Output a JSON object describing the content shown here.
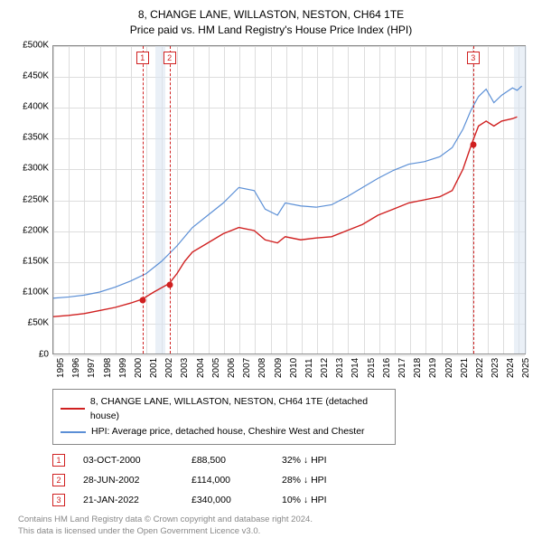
{
  "title": {
    "line1": "8, CHANGE LANE, WILLASTON, NESTON, CH64 1TE",
    "line2": "Price paid vs. HM Land Registry's House Price Index (HPI)"
  },
  "chart": {
    "type": "line",
    "background_color": "#ffffff",
    "grid_color": "#dddddd",
    "axis_color": "#888888",
    "label_fontsize": 10,
    "tick_fontsize": 10,
    "ylim": [
      0,
      500000
    ],
    "ytick_step": 50000,
    "yticks": [
      "£0",
      "£50K",
      "£100K",
      "£150K",
      "£200K",
      "£250K",
      "£300K",
      "£350K",
      "£400K",
      "£450K",
      "£500K"
    ],
    "xlim": [
      1995,
      2025.5
    ],
    "xticks": [
      "1995",
      "1996",
      "1997",
      "1998",
      "1999",
      "2000",
      "2001",
      "2002",
      "2003",
      "2004",
      "2005",
      "2006",
      "2007",
      "2008",
      "2009",
      "2010",
      "2011",
      "2012",
      "2013",
      "2014",
      "2015",
      "2016",
      "2017",
      "2018",
      "2019",
      "2020",
      "2021",
      "2022",
      "2023",
      "2024",
      "2025"
    ],
    "band_color": "#dce6f2",
    "bands": [
      {
        "from": 2001.6,
        "to": 2002.2
      },
      {
        "from": 2024.7,
        "to": 2025.5
      }
    ],
    "series": [
      {
        "name": "price_paid",
        "color": "#d02020",
        "width": 1.4,
        "points": [
          [
            1995.0,
            60000
          ],
          [
            1996.0,
            62000
          ],
          [
            1997.0,
            65000
          ],
          [
            1998.0,
            70000
          ],
          [
            1999.0,
            75000
          ],
          [
            2000.0,
            82000
          ],
          [
            2000.75,
            88500
          ],
          [
            2001.5,
            100000
          ],
          [
            2002.5,
            114000
          ],
          [
            2003.0,
            130000
          ],
          [
            2003.5,
            150000
          ],
          [
            2004.0,
            165000
          ],
          [
            2005.0,
            180000
          ],
          [
            2006.0,
            195000
          ],
          [
            2007.0,
            205000
          ],
          [
            2008.0,
            200000
          ],
          [
            2008.7,
            185000
          ],
          [
            2009.5,
            180000
          ],
          [
            2010.0,
            190000
          ],
          [
            2011.0,
            185000
          ],
          [
            2012.0,
            188000
          ],
          [
            2013.0,
            190000
          ],
          [
            2014.0,
            200000
          ],
          [
            2015.0,
            210000
          ],
          [
            2016.0,
            225000
          ],
          [
            2017.0,
            235000
          ],
          [
            2018.0,
            245000
          ],
          [
            2019.0,
            250000
          ],
          [
            2020.0,
            255000
          ],
          [
            2020.8,
            265000
          ],
          [
            2021.5,
            300000
          ],
          [
            2022.05,
            340000
          ],
          [
            2022.5,
            370000
          ],
          [
            2023.0,
            378000
          ],
          [
            2023.5,
            370000
          ],
          [
            2024.0,
            378000
          ],
          [
            2024.7,
            382000
          ],
          [
            2025.0,
            385000
          ]
        ]
      },
      {
        "name": "hpi",
        "color": "#5b8fd6",
        "width": 1.2,
        "points": [
          [
            1995.0,
            90000
          ],
          [
            1996.0,
            92000
          ],
          [
            1997.0,
            95000
          ],
          [
            1998.0,
            100000
          ],
          [
            1999.0,
            108000
          ],
          [
            2000.0,
            118000
          ],
          [
            2001.0,
            130000
          ],
          [
            2002.0,
            150000
          ],
          [
            2003.0,
            175000
          ],
          [
            2004.0,
            205000
          ],
          [
            2005.0,
            225000
          ],
          [
            2006.0,
            245000
          ],
          [
            2007.0,
            270000
          ],
          [
            2008.0,
            265000
          ],
          [
            2008.7,
            235000
          ],
          [
            2009.5,
            225000
          ],
          [
            2010.0,
            245000
          ],
          [
            2011.0,
            240000
          ],
          [
            2012.0,
            238000
          ],
          [
            2013.0,
            242000
          ],
          [
            2014.0,
            255000
          ],
          [
            2015.0,
            270000
          ],
          [
            2016.0,
            285000
          ],
          [
            2017.0,
            298000
          ],
          [
            2018.0,
            308000
          ],
          [
            2019.0,
            312000
          ],
          [
            2020.0,
            320000
          ],
          [
            2020.8,
            335000
          ],
          [
            2021.5,
            365000
          ],
          [
            2022.0,
            395000
          ],
          [
            2022.5,
            418000
          ],
          [
            2023.0,
            430000
          ],
          [
            2023.5,
            408000
          ],
          [
            2024.0,
            420000
          ],
          [
            2024.7,
            432000
          ],
          [
            2025.0,
            428000
          ],
          [
            2025.3,
            435000
          ]
        ]
      }
    ],
    "markers": [
      {
        "n": "1",
        "x": 2000.75,
        "y": 88500
      },
      {
        "n": "2",
        "x": 2002.49,
        "y": 114000
      },
      {
        "n": "3",
        "x": 2022.05,
        "y": 340000
      }
    ],
    "marker_line_color": "#d02020"
  },
  "legend": {
    "items": [
      {
        "color": "#d02020",
        "label": "8, CHANGE LANE, WILLASTON, NESTON, CH64 1TE (detached house)"
      },
      {
        "color": "#5b8fd6",
        "label": "HPI: Average price, detached house, Cheshire West and Chester"
      }
    ]
  },
  "events": [
    {
      "n": "1",
      "date": "03-OCT-2000",
      "price": "£88,500",
      "delta": "32% ↓ HPI"
    },
    {
      "n": "2",
      "date": "28-JUN-2002",
      "price": "£114,000",
      "delta": "28% ↓ HPI"
    },
    {
      "n": "3",
      "date": "21-JAN-2022",
      "price": "£340,000",
      "delta": "10% ↓ HPI"
    }
  ],
  "attribution": {
    "line1": "Contains HM Land Registry data © Crown copyright and database right 2024.",
    "line2": "This data is licensed under the Open Government Licence v3.0."
  }
}
